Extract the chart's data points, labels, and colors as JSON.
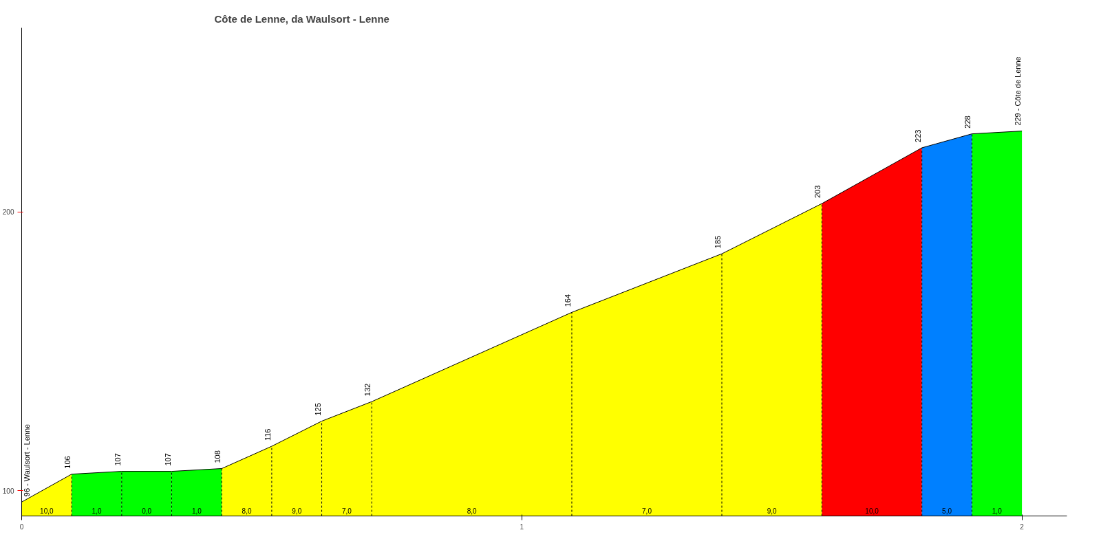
{
  "chart_data": {
    "type": "area",
    "title": "Côte de Lenne, da Waulsort - Lenne",
    "series": [
      {
        "color": "#ffff00",
        "x": [
          0,
          0.1
        ],
        "values": [
          96,
          106
        ],
        "value_labels": [
          "96 - Waulsort - Lenne",
          null
        ]
      },
      {
        "color": "#00ff00",
        "x": [
          0.1,
          0.2
        ],
        "values": [
          106,
          107
        ],
        "value_labels": [
          "106",
          null
        ]
      },
      {
        "color": "#00ff00",
        "x": [
          0.2,
          0.3
        ],
        "values": [
          107,
          107
        ],
        "value_labels": [
          "107",
          null
        ]
      },
      {
        "color": "#00ff00",
        "x": [
          0.3,
          0.4
        ],
        "values": [
          107,
          108
        ],
        "value_labels": [
          "107",
          null
        ]
      },
      {
        "color": "#ffff00",
        "x": [
          0.4,
          0.5
        ],
        "values": [
          108,
          116
        ],
        "value_labels": [
          "108",
          null
        ]
      },
      {
        "color": "#ffff00",
        "x": [
          0.5,
          0.6
        ],
        "values": [
          116,
          125
        ],
        "value_labels": [
          "116",
          null
        ]
      },
      {
        "color": "#ffff00",
        "x": [
          0.6,
          0.7
        ],
        "values": [
          125,
          132
        ],
        "value_labels": [
          "125",
          null
        ]
      },
      {
        "color": "#ffff00",
        "x": [
          0.7,
          1.1
        ],
        "values": [
          132,
          164
        ],
        "value_labels": [
          "132",
          null
        ]
      },
      {
        "color": "#ffff00",
        "x": [
          1.1,
          1.4
        ],
        "values": [
          164,
          185
        ],
        "value_labels": [
          "164",
          null
        ]
      },
      {
        "color": "#ffff00",
        "x": [
          1.4,
          1.6
        ],
        "values": [
          185,
          203
        ],
        "value_labels": [
          "185",
          null
        ]
      },
      {
        "color": "#ff0000",
        "x": [
          1.6,
          1.8
        ],
        "values": [
          203,
          223
        ],
        "value_labels": [
          "203",
          null
        ]
      },
      {
        "color": "#0080ff",
        "x": [
          1.8,
          1.9
        ],
        "values": [
          223,
          228
        ],
        "value_labels": [
          "223",
          null
        ]
      },
      {
        "color": "#00ff00",
        "x": [
          1.9,
          2.0
        ],
        "values": [
          228,
          229
        ],
        "value_labels": [
          "228",
          "229 - Côte de Lenne"
        ]
      }
    ],
    "annotations": [
      "10,0",
      "1,0",
      "0,0",
      "1,0",
      "8,0",
      "9,0",
      "7,0",
      "8,0",
      "7,0",
      "9,0",
      "10,0",
      "5,0",
      "1,0"
    ],
    "xlim": [
      0,
      2.09
    ],
    "ylim": [
      91,
      266
    ],
    "xticks": [
      0,
      1,
      2
    ],
    "yticks": [
      100,
      200
    ],
    "grid": false
  }
}
